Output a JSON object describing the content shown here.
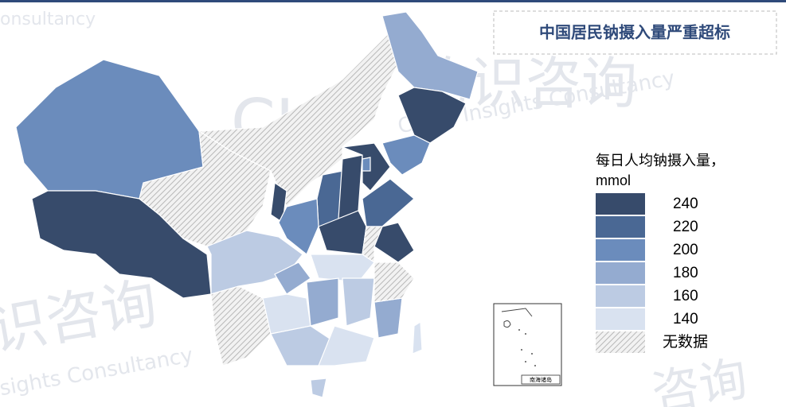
{
  "title": "中国居民钠摄入量严重超标",
  "legend": {
    "title": "每日人均钠摄入量，",
    "unit": "mmol",
    "items": [
      {
        "label": 240,
        "color": "#374b6b"
      },
      {
        "label": 220,
        "color": "#4a6894"
      },
      {
        "label": 200,
        "color": "#6b8cbc"
      },
      {
        "label": 180,
        "color": "#94abd0"
      },
      {
        "label": 160,
        "color": "#bccbe3"
      },
      {
        "label": 140,
        "color": "#d9e2f0"
      },
      {
        "label": "无数据",
        "color": "hatch"
      }
    ]
  },
  "inset_label": "南海诸岛",
  "watermarks": [
    "onsultancy",
    "CIC",
    "灼识咨询",
    "China Insights Consultancy",
    "识咨询",
    "sights Consultancy",
    "咨询"
  ]
}
